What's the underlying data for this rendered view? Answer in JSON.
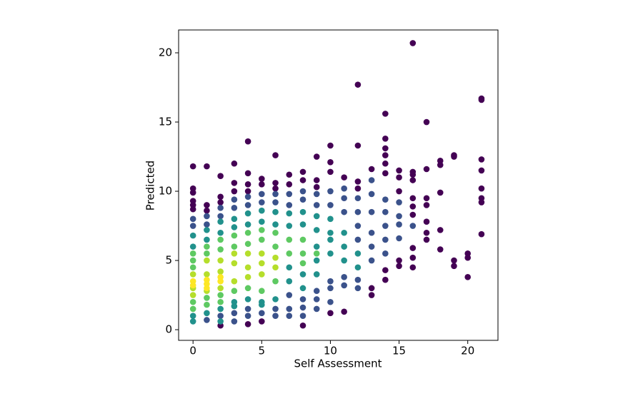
{
  "chart_data": {
    "type": "scatter",
    "x_label": "Self Assessment",
    "y_label": "Predicted",
    "xlim": [
      -1.05,
      22.2
    ],
    "ylim": [
      -0.77,
      21.65
    ],
    "xticks": [
      0,
      5,
      10,
      15,
      20
    ],
    "yticks": [
      0,
      5,
      10,
      15,
      20
    ],
    "grid": false,
    "series": [
      {
        "color": "#440154",
        "x": [
          0,
          0,
          0,
          0,
          0,
          0,
          1,
          1,
          1,
          2,
          2,
          2,
          2,
          3,
          3,
          3,
          4,
          4,
          4,
          4,
          4,
          5,
          5,
          5,
          6,
          6,
          6,
          7,
          7,
          8,
          8,
          8,
          9,
          9,
          9,
          10,
          10,
          10,
          10,
          11,
          11,
          12,
          12,
          12,
          12,
          13,
          13,
          13,
          14,
          14,
          14,
          14,
          14,
          14,
          14,
          14,
          15,
          15,
          15,
          15,
          15,
          16,
          16,
          16,
          16,
          16,
          16,
          16,
          16,
          16,
          16,
          17,
          17,
          17,
          17,
          17,
          17,
          17,
          18,
          18,
          18,
          18,
          18,
          19,
          19,
          19,
          19,
          20,
          20,
          20,
          21,
          21,
          21,
          21,
          21,
          21,
          21,
          21
        ],
        "values": [
          11.8,
          10.2,
          9.9,
          9.3,
          9.0,
          8.7,
          11.8,
          9.0,
          8.6,
          11.1,
          9.6,
          9.2,
          0.3,
          12.0,
          10.6,
          10.0,
          13.6,
          11.3,
          10.5,
          10.0,
          0.4,
          10.9,
          10.5,
          0.6,
          12.6,
          10.6,
          10.2,
          11.2,
          10.5,
          11.4,
          10.8,
          0.3,
          12.5,
          10.8,
          10.3,
          13.3,
          12.1,
          11.4,
          1.2,
          11.0,
          1.3,
          17.7,
          13.3,
          10.7,
          10.2,
          11.6,
          2.5,
          3.0,
          15.6,
          13.8,
          13.1,
          12.6,
          12.0,
          11.3,
          3.6,
          4.3,
          11.5,
          11.0,
          10.0,
          4.6,
          5.0,
          20.7,
          11.4,
          11.2,
          10.8,
          9.5,
          8.9,
          8.3,
          5.9,
          5.2,
          4.5,
          15.0,
          11.6,
          9.5,
          9.0,
          7.8,
          7.0,
          6.5,
          12.2,
          11.9,
          9.9,
          7.2,
          5.8,
          12.6,
          12.5,
          5.0,
          4.6,
          5.5,
          5.2,
          3.8,
          16.7,
          16.6,
          12.3,
          11.5,
          10.2,
          9.5,
          9.2,
          6.9
        ]
      },
      {
        "color": "#3b528b",
        "x": [
          0,
          0,
          1,
          1,
          1,
          2,
          2,
          2,
          3,
          3,
          3,
          3,
          4,
          4,
          4,
          4,
          5,
          5,
          5,
          6,
          6,
          6,
          6,
          7,
          7,
          7,
          7,
          7,
          8,
          8,
          8,
          8,
          8,
          9,
          9,
          9,
          9,
          9,
          10,
          10,
          10,
          10,
          10,
          11,
          11,
          11,
          11,
          11,
          12,
          12,
          12,
          12,
          12,
          12,
          13,
          13,
          13,
          13,
          13,
          13,
          14,
          14,
          14,
          14,
          14,
          15,
          15,
          15,
          15,
          16
        ],
        "values": [
          8.0,
          7.5,
          8.2,
          7.6,
          0.7,
          8.8,
          8.2,
          1.0,
          9.4,
          8.8,
          0.6,
          1.2,
          9.6,
          9.0,
          1.0,
          1.5,
          9.8,
          9.2,
          1.2,
          9.8,
          9.2,
          1.0,
          1.5,
          9.8,
          9.0,
          1.0,
          1.5,
          2.5,
          10.0,
          9.4,
          1.0,
          1.6,
          2.2,
          9.8,
          9.0,
          1.5,
          2.2,
          2.8,
          10.0,
          9.0,
          2.0,
          3.0,
          3.5,
          10.2,
          9.5,
          8.5,
          3.2,
          3.8,
          9.5,
          8.5,
          7.5,
          6.5,
          3.0,
          3.6,
          10.8,
          9.8,
          8.5,
          7.0,
          6.0,
          5.0,
          9.4,
          8.5,
          7.5,
          6.5,
          5.5,
          9.2,
          8.2,
          7.6,
          6.6,
          7.5
        ]
      },
      {
        "color": "#21918c",
        "x": [
          0,
          0,
          0,
          0,
          1,
          1,
          1,
          2,
          2,
          2,
          2,
          3,
          3,
          3,
          3,
          4,
          4,
          4,
          5,
          5,
          5,
          5,
          6,
          6,
          6,
          7,
          7,
          7,
          7,
          8,
          8,
          8,
          8,
          9,
          9,
          9,
          9,
          9,
          10,
          10,
          10,
          10,
          11,
          11,
          11,
          12,
          12
        ],
        "values": [
          6.8,
          6.0,
          1.0,
          0.6,
          7.2,
          6.5,
          1.2,
          7.8,
          7.0,
          1.5,
          0.6,
          8.0,
          7.4,
          2.0,
          1.7,
          8.4,
          7.6,
          2.2,
          8.6,
          7.8,
          2.0,
          1.8,
          8.5,
          7.6,
          2.2,
          8.4,
          7.5,
          3.5,
          4.5,
          8.5,
          7.6,
          3.0,
          4.0,
          8.2,
          7.2,
          4.0,
          5.0,
          6.0,
          8.0,
          7.0,
          5.5,
          6.5,
          7.0,
          6.0,
          5.0,
          5.5,
          4.5
        ]
      },
      {
        "color": "#5ec962",
        "x": [
          0,
          0,
          0,
          0,
          0,
          1,
          1,
          1,
          1,
          2,
          2,
          2,
          2,
          3,
          3,
          3,
          4,
          4,
          4,
          5,
          5,
          5,
          6,
          6,
          6,
          7,
          7,
          8,
          8,
          8,
          9
        ],
        "values": [
          5.5,
          5.0,
          4.5,
          1.5,
          2.0,
          6.0,
          5.5,
          1.8,
          2.3,
          6.5,
          5.8,
          2.0,
          2.5,
          6.8,
          6.0,
          2.8,
          7.0,
          6.2,
          3.0,
          7.2,
          6.5,
          2.8,
          7.0,
          6.0,
          3.5,
          6.5,
          5.5,
          6.5,
          5.5,
          4.8,
          5.5
        ]
      },
      {
        "color": "#b5de2b",
        "x": [
          0,
          0,
          0,
          1,
          1,
          1,
          2,
          2,
          2,
          3,
          3,
          3,
          4,
          4,
          4,
          5,
          5,
          5,
          6,
          6
        ],
        "values": [
          4.0,
          2.5,
          3.0,
          5.0,
          4.0,
          2.8,
          5.0,
          4.2,
          3.0,
          5.5,
          4.8,
          3.5,
          5.5,
          4.5,
          3.8,
          5.5,
          4.8,
          4.0,
          5.2,
          4.5
        ]
      },
      {
        "color": "#fde725",
        "x": [
          0,
          0,
          1,
          1,
          1,
          2,
          2
        ],
        "values": [
          3.5,
          3.2,
          3.6,
          3.3,
          3.0,
          3.8,
          3.5
        ]
      }
    ]
  }
}
